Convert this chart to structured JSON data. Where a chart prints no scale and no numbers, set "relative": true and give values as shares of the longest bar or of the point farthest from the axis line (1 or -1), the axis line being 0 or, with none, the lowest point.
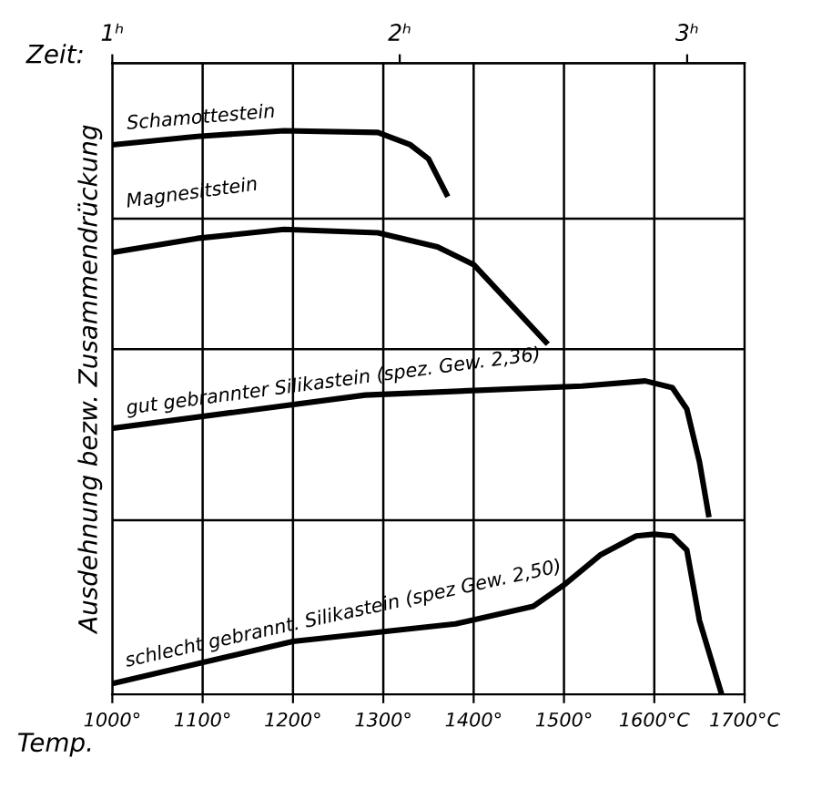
{
  "chart_data": {
    "type": "line",
    "relative": true,
    "ylabel": "Ausdehnung bezw. Zusammendrückung",
    "xlabel": "Temp.",
    "x2label": "Zeit:",
    "xlim": [
      1000,
      1700
    ],
    "xticks": [
      {
        "value": 1000,
        "label": "1000°"
      },
      {
        "value": 1100,
        "label": "1100°"
      },
      {
        "value": 1200,
        "label": "1200°"
      },
      {
        "value": 1300,
        "label": "1300°"
      },
      {
        "value": 1400,
        "label": "1400°"
      },
      {
        "value": 1500,
        "label": "1500°"
      },
      {
        "value": 1600,
        "label": "1600°C"
      },
      {
        "value": 1700,
        "label": "1700°C"
      }
    ],
    "x2lim": [
      1,
      3.2
    ],
    "x2ticks": [
      {
        "value": 1,
        "label": "1ʰ"
      },
      {
        "value": 2,
        "label": "2ʰ"
      },
      {
        "value": 3,
        "label": "3ʰ"
      }
    ],
    "grid": "x",
    "marker": "none",
    "line_style": "solid",
    "ref_lines": [
      {
        "axis": "y",
        "value": 0.844,
        "color": "#000000"
      },
      {
        "axis": "y",
        "value": 0.6125,
        "color": "#000000"
      },
      {
        "axis": "y",
        "value": 0.309,
        "color": "#000000"
      }
    ],
    "series": [
      {
        "name": "Schamottestein",
        "color": "#000000",
        "x": [
          1000,
          1094,
          1190,
          1294,
          1330,
          1350,
          1370
        ],
        "values": [
          0.975,
          0.99,
          1.0,
          0.997,
          0.975,
          0.95,
          0.8875
        ]
      },
      {
        "name": "Magnesitstein",
        "color": "#000000",
        "x": [
          1000,
          1094,
          1190,
          1294,
          1360,
          1400,
          1440,
          1480
        ],
        "values": [
          0.784,
          0.809,
          0.825,
          0.819,
          0.794,
          0.7625,
          0.694,
          0.625
        ]
      },
      {
        "name": "gut gebrannter Silikastein (spez. Gew. 2,36)",
        "color": "#000000",
        "x": [
          1000,
          1280,
          1520,
          1590,
          1620,
          1636,
          1650,
          1660
        ],
        "values": [
          0.472,
          0.531,
          0.547,
          0.556,
          0.544,
          0.506,
          0.4125,
          0.319
        ]
      },
      {
        "name": "schlecht gebrannt. Silikastein (spez Gew. 2,50)",
        "color": "#000000",
        "x": [
          1000,
          1200,
          1380,
          1466,
          1500,
          1540,
          1580,
          1600,
          1620,
          1636,
          1650,
          1674
        ],
        "values": [
          0.019,
          0.094,
          0.125,
          0.156,
          0.194,
          0.247,
          0.281,
          0.284,
          0.281,
          0.256,
          0.131,
          0.003
        ]
      }
    ]
  }
}
